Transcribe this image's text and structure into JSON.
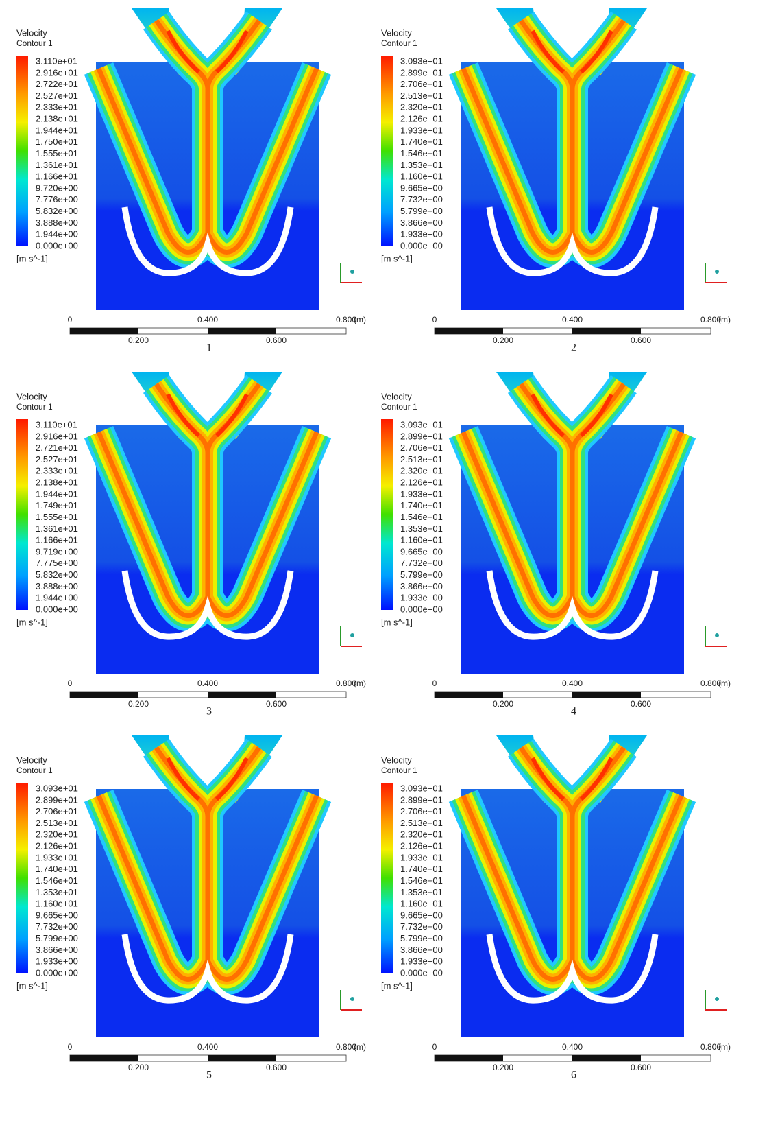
{
  "panels": [
    {
      "number": "1",
      "title": "Velocity",
      "subtitle": "Contour 1",
      "unit": "[m s^-1]",
      "legend": [
        "3.110e+01",
        "2.916e+01",
        "2.722e+01",
        "2.527e+01",
        "2.333e+01",
        "2.138e+01",
        "1.944e+01",
        "1.750e+01",
        "1.555e+01",
        "1.361e+01",
        "1.166e+01",
        "9.720e+00",
        "7.776e+00",
        "5.832e+00",
        "3.888e+00",
        "1.944e+00",
        "0.000e+00"
      ],
      "scale": {
        "top": [
          "0",
          "0.400",
          "0.800"
        ],
        "unit": "(m)",
        "bottom": [
          "0.200",
          "0.600"
        ]
      }
    },
    {
      "number": "2",
      "title": "Velocity",
      "subtitle": "Contour 1",
      "unit": "[m s^-1]",
      "legend": [
        "3.093e+01",
        "2.899e+01",
        "2.706e+01",
        "2.513e+01",
        "2.320e+01",
        "2.126e+01",
        "1.933e+01",
        "1.740e+01",
        "1.546e+01",
        "1.353e+01",
        "1.160e+01",
        "9.665e+00",
        "7.732e+00",
        "5.799e+00",
        "3.866e+00",
        "1.933e+00",
        "0.000e+00"
      ],
      "scale": {
        "top": [
          "0",
          "0.400",
          "0.800"
        ],
        "unit": "(m)",
        "bottom": [
          "0.200",
          "0.600"
        ]
      }
    },
    {
      "number": "3",
      "title": "Velocity",
      "subtitle": "Contour 1",
      "unit": "[m s^-1]",
      "legend": [
        "3.110e+01",
        "2.916e+01",
        "2.721e+01",
        "2.527e+01",
        "2.333e+01",
        "2.138e+01",
        "1.944e+01",
        "1.749e+01",
        "1.555e+01",
        "1.361e+01",
        "1.166e+01",
        "9.719e+00",
        "7.775e+00",
        "5.832e+00",
        "3.888e+00",
        "1.944e+00",
        "0.000e+00"
      ],
      "scale": {
        "top": [
          "0",
          "0.400",
          "0.800"
        ],
        "unit": "(m)",
        "bottom": [
          "0.200",
          "0.600"
        ]
      }
    },
    {
      "number": "4",
      "title": "Velocity",
      "subtitle": "Contour 1",
      "unit": "[m s^-1]",
      "legend": [
        "3.093e+01",
        "2.899e+01",
        "2.706e+01",
        "2.513e+01",
        "2.320e+01",
        "2.126e+01",
        "1.933e+01",
        "1.740e+01",
        "1.546e+01",
        "1.353e+01",
        "1.160e+01",
        "9.665e+00",
        "7.732e+00",
        "5.799e+00",
        "3.866e+00",
        "1.933e+00",
        "0.000e+00"
      ],
      "scale": {
        "top": [
          "0",
          "0.400",
          "0.800"
        ],
        "unit": "(m)",
        "bottom": [
          "0.200",
          "0.600"
        ]
      }
    },
    {
      "number": "5",
      "title": "Velocity",
      "subtitle": "Contour 1",
      "unit": "[m s^-1]",
      "legend": [
        "3.093e+01",
        "2.899e+01",
        "2.706e+01",
        "2.513e+01",
        "2.320e+01",
        "2.126e+01",
        "1.933e+01",
        "1.740e+01",
        "1.546e+01",
        "1.353e+01",
        "1.160e+01",
        "9.665e+00",
        "7.732e+00",
        "5.799e+00",
        "3.866e+00",
        "1.933e+00",
        "0.000e+00"
      ],
      "scale": {
        "top": [
          "0",
          "0.400",
          "0.800"
        ],
        "unit": "(m)",
        "bottom": [
          "0.200",
          "0.600"
        ]
      }
    },
    {
      "number": "6",
      "title": "Velocity",
      "subtitle": "Contour 1",
      "unit": "[m s^-1]",
      "legend": [
        "3.093e+01",
        "2.899e+01",
        "2.706e+01",
        "2.513e+01",
        "2.320e+01",
        "2.126e+01",
        "1.933e+01",
        "1.740e+01",
        "1.546e+01",
        "1.353e+01",
        "1.160e+01",
        "9.665e+00",
        "7.732e+00",
        "5.799e+00",
        "3.866e+00",
        "1.933e+00",
        "0.000e+00"
      ],
      "scale": {
        "top": [
          "0",
          "0.400",
          "0.800"
        ],
        "unit": "(m)",
        "bottom": [
          "0.200",
          "0.600"
        ]
      }
    }
  ]
}
